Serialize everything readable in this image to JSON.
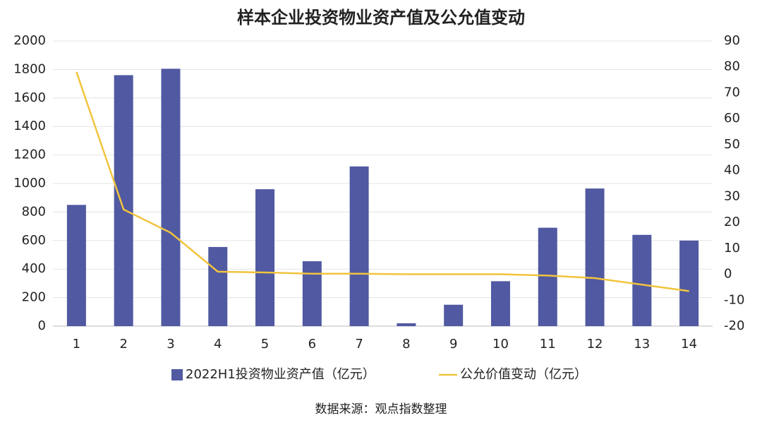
{
  "chart_data": {
    "type": "combo",
    "title": "样本企业投资物业资产值及公允值变动",
    "source": "数据来源：观点指数整理",
    "categories": [
      "1",
      "2",
      "3",
      "4",
      "5",
      "6",
      "7",
      "8",
      "9",
      "10",
      "11",
      "12",
      "13",
      "14"
    ],
    "series": [
      {
        "name": "2022H1投资物业资产值（亿元）",
        "type": "bar",
        "color": "#5059a1",
        "values": [
          850,
          1760,
          1805,
          555,
          960,
          455,
          1120,
          20,
          150,
          315,
          690,
          965,
          640,
          600
        ]
      },
      {
        "name": "公允价值变动（亿元）",
        "type": "line",
        "color": "#f2c43d",
        "axis": "y2",
        "values": [
          78,
          25,
          16,
          1,
          0.7,
          0.2,
          0.2,
          0,
          0,
          0,
          -0.5,
          -1.5,
          -4,
          -6.5
        ]
      }
    ],
    "ylim": [
      0,
      2000
    ],
    "yticks": [
      0,
      200,
      400,
      600,
      800,
      1000,
      1200,
      1400,
      1600,
      1800,
      2000
    ],
    "y2lim": [
      -20,
      90
    ],
    "y2ticks": [
      -20,
      -10,
      0,
      10,
      20,
      30,
      40,
      50,
      60,
      70,
      80,
      90
    ],
    "grid": true,
    "legend": "bottom"
  }
}
